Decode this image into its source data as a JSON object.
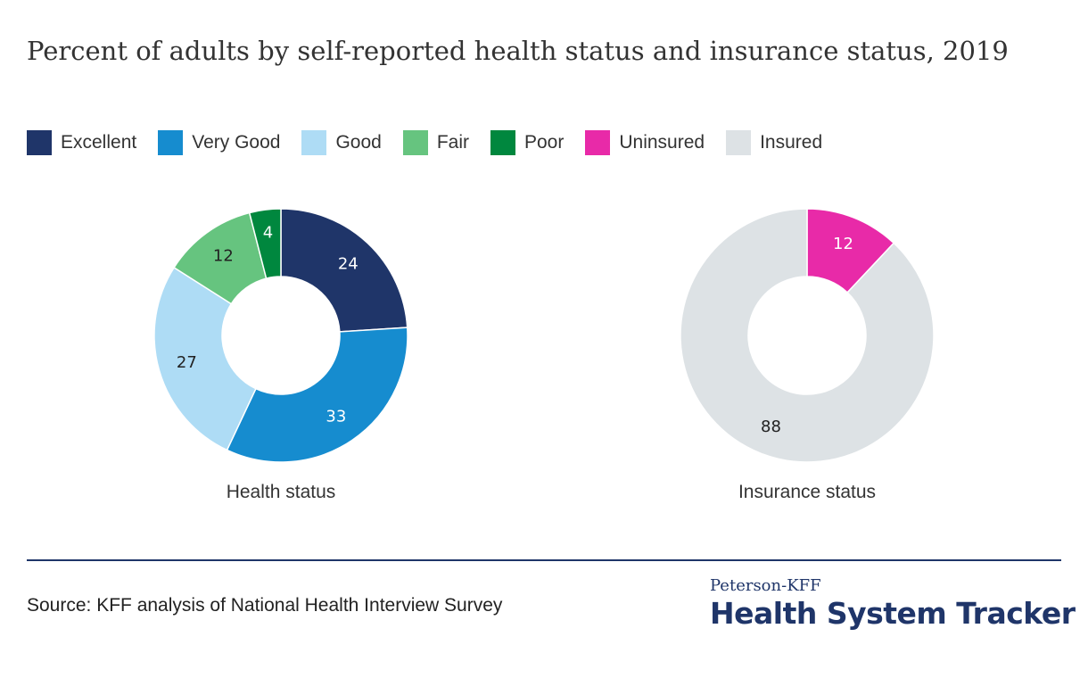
{
  "title": "Percent of adults by self-reported health status and insurance status, 2019",
  "legend": [
    {
      "label": "Excellent",
      "color": "#1f3569"
    },
    {
      "label": "Very Good",
      "color": "#168ccf"
    },
    {
      "label": "Good",
      "color": "#aedcf5"
    },
    {
      "label": "Fair",
      "color": "#66c47f"
    },
    {
      "label": "Poor",
      "color": "#00873e"
    },
    {
      "label": "Uninsured",
      "color": "#e82aa8"
    },
    {
      "label": "Insured",
      "color": "#dde2e5"
    }
  ],
  "chart_data": [
    {
      "type": "pie",
      "variant": "donut",
      "title": "Health status",
      "slices": [
        {
          "label": "Excellent",
          "value": 24,
          "color": "#1f3569",
          "label_color": "#ffffff"
        },
        {
          "label": "Very Good",
          "value": 33,
          "color": "#168ccf",
          "label_color": "#ffffff"
        },
        {
          "label": "Good",
          "value": 27,
          "color": "#aedcf5",
          "label_color": "#222222"
        },
        {
          "label": "Fair",
          "value": 12,
          "color": "#66c47f",
          "label_color": "#222222"
        },
        {
          "label": "Poor",
          "value": 4,
          "color": "#00873e",
          "label_color": "#ffffff"
        }
      ]
    },
    {
      "type": "pie",
      "variant": "donut",
      "title": "Insurance status",
      "slices": [
        {
          "label": "Uninsured",
          "value": 12,
          "color": "#e82aa8",
          "label_color": "#ffffff"
        },
        {
          "label": "Insured",
          "value": 88,
          "color": "#dde2e5",
          "label_color": "#222222"
        }
      ]
    }
  ],
  "source": "Source: KFF analysis of National Health Interview Survey",
  "brand": {
    "top": "Peterson-KFF",
    "main": "Health System Tracker"
  }
}
